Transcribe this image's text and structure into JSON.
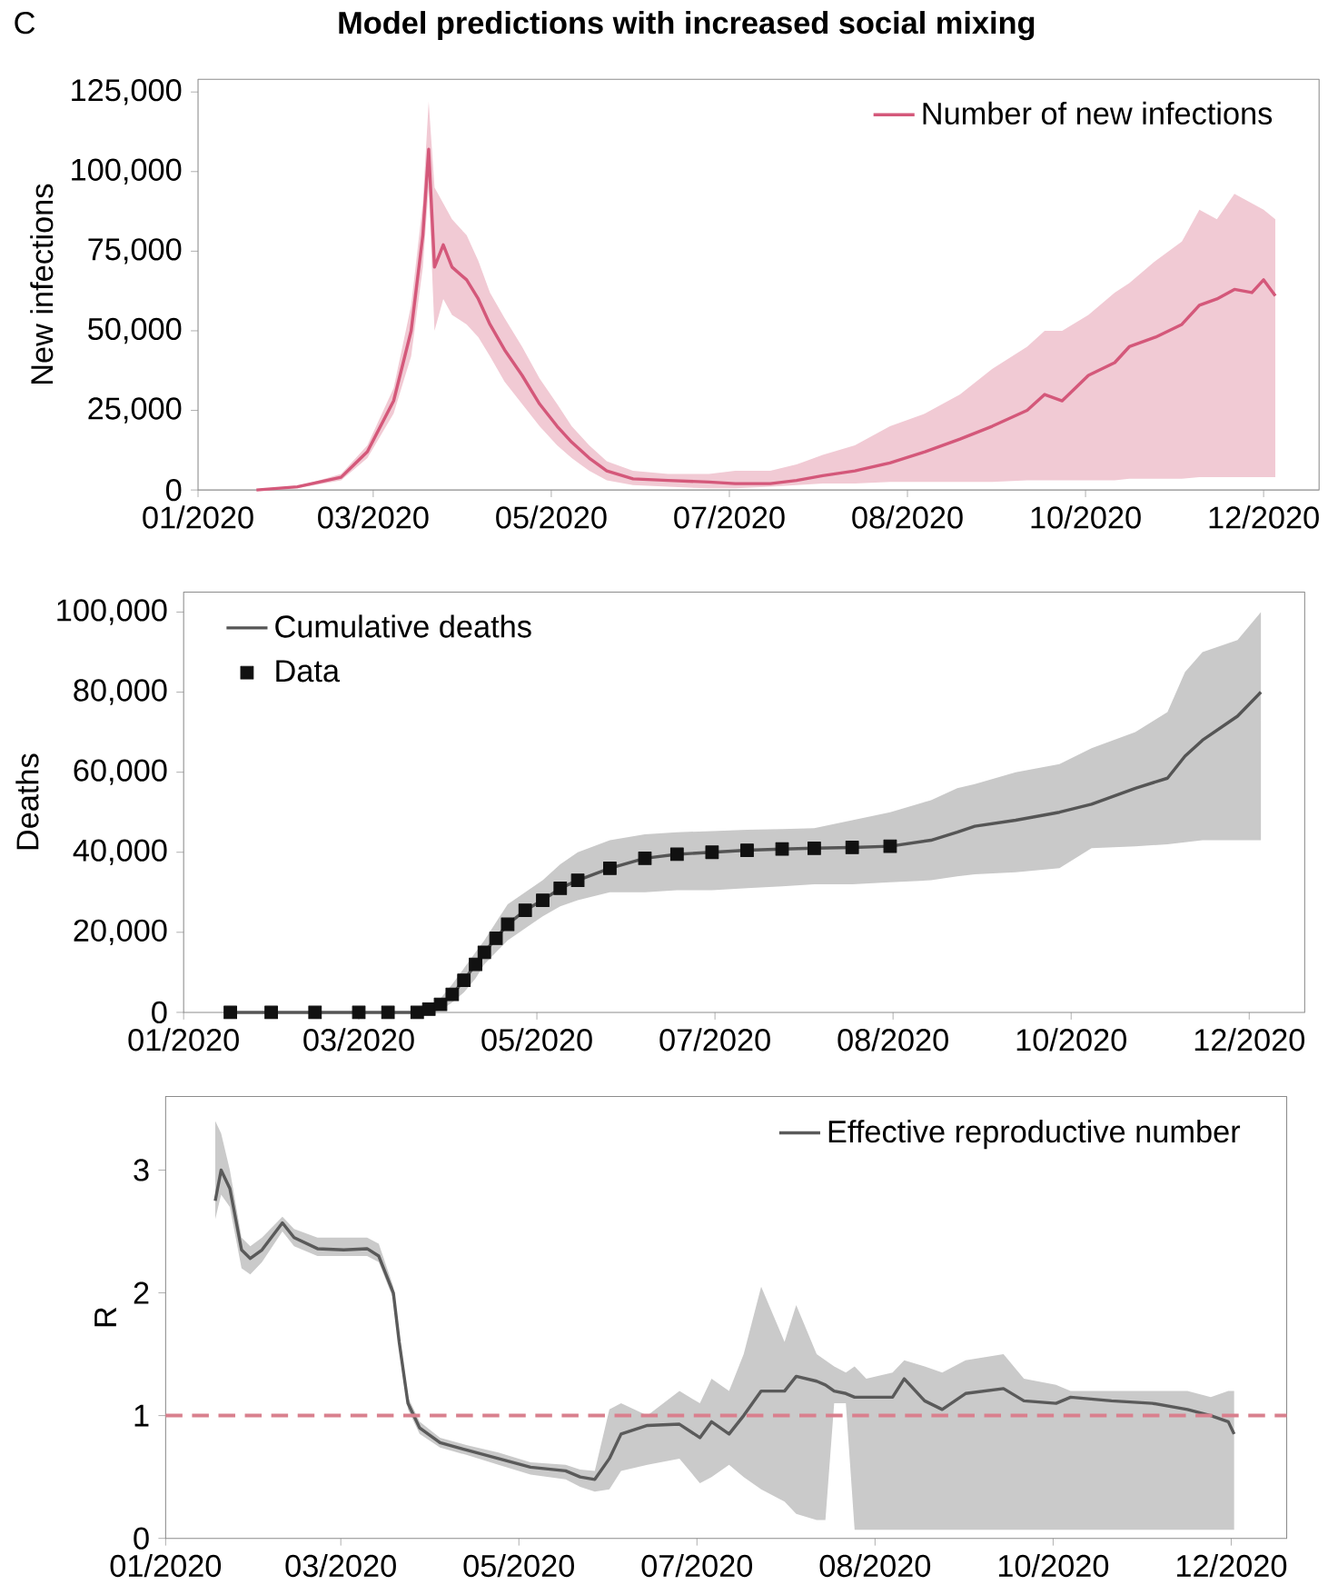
{
  "chart_data": [
    {
      "type": "line",
      "title": "Model predictions with increased social mixing",
      "annotations": [
        "C"
      ],
      "ylabel": "New infections",
      "legend": "top right",
      "xlim": [
        "2020-01-01",
        "2021-01-19"
      ],
      "xticks": [
        {
          "value": "2020-01-01",
          "label": "01/2020"
        },
        {
          "value": "2020-03-01",
          "label": "03/2020"
        },
        {
          "value": "2020-05-01",
          "label": "05/2020"
        },
        {
          "value": "2020-07-01",
          "label": "07/2020"
        },
        {
          "value": "2020-08-31",
          "label": "08/2020"
        },
        {
          "value": "2020-10-31",
          "label": "10/2020"
        },
        {
          "value": "2020-12-31",
          "label": "12/2020"
        }
      ],
      "ylim": [
        0,
        129000
      ],
      "yticks": [
        0,
        {
          "value": 25000,
          "label": "25,000"
        },
        {
          "value": 50000,
          "label": "50,000"
        },
        {
          "value": 75000,
          "label": "75,000"
        },
        {
          "value": 100000,
          "label": "100,000"
        },
        {
          "value": 125000,
          "label": "125,000"
        }
      ],
      "series": [
        {
          "name": "Number of new infections",
          "color": "#d4587a",
          "x": [
            "2020-01-21",
            "2020-02-04",
            "2020-02-19",
            "2020-02-28",
            "2020-03-08",
            "2020-03-14",
            "2020-03-18",
            "2020-03-20",
            "2020-03-22",
            "2020-03-25",
            "2020-03-28",
            "2020-04-02",
            "2020-04-06",
            "2020-04-10",
            "2020-04-15",
            "2020-04-21",
            "2020-04-27",
            "2020-05-03",
            "2020-05-08",
            "2020-05-14",
            "2020-05-20",
            "2020-05-29",
            "2020-06-10",
            "2020-06-24",
            "2020-07-03",
            "2020-07-15",
            "2020-07-24",
            "2020-08-02",
            "2020-08-13",
            "2020-08-25",
            "2020-09-06",
            "2020-09-18",
            "2020-09-29",
            "2020-10-11",
            "2020-10-17",
            "2020-10-23",
            "2020-11-01",
            "2020-11-10",
            "2020-11-15",
            "2020-11-24",
            "2020-12-03",
            "2020-12-09",
            "2020-12-15",
            "2020-12-21",
            "2020-12-27",
            "2020-12-31",
            "2021-01-04"
          ],
          "values": [
            0,
            1000,
            4000,
            12000,
            28000,
            50000,
            80000,
            107000,
            70000,
            77000,
            70000,
            66000,
            60000,
            52000,
            44000,
            36000,
            27000,
            20000,
            15000,
            10000,
            6000,
            3500,
            3000,
            2500,
            2000,
            2000,
            3000,
            4500,
            6000,
            8500,
            12000,
            16000,
            20000,
            25000,
            30000,
            28000,
            36000,
            40000,
            45000,
            48000,
            52000,
            58000,
            60000,
            63000,
            62000,
            66000,
            61000
          ],
          "lower": [
            0,
            500,
            3000,
            10000,
            24000,
            42000,
            70000,
            95000,
            50000,
            60000,
            55000,
            52000,
            48000,
            42000,
            34000,
            27000,
            20000,
            14000,
            10000,
            6000,
            3000,
            1500,
            1000,
            500,
            500,
            1000,
            1500,
            2000,
            2000,
            2500,
            2500,
            2500,
            2500,
            3000,
            3000,
            3000,
            3000,
            3000,
            3500,
            3500,
            3500,
            4000,
            4000,
            4000,
            4000,
            4000,
            4000
          ],
          "upper": [
            0,
            1000,
            5000,
            14000,
            32000,
            58000,
            90000,
            122000,
            95000,
            90000,
            85000,
            80000,
            72000,
            62000,
            54000,
            45000,
            35000,
            27000,
            20000,
            14000,
            9000,
            6000,
            5000,
            5000,
            6000,
            6000,
            8000,
            11000,
            14000,
            20000,
            24000,
            30000,
            38000,
            45000,
            50000,
            50000,
            55000,
            62000,
            65000,
            72000,
            78000,
            88000,
            85000,
            93000,
            90000,
            88000,
            85000
          ]
        }
      ]
    },
    {
      "type": "line",
      "ylabel": "Deaths",
      "legend": "top left",
      "xlim": [
        "2020-01-01",
        "2021-01-19"
      ],
      "xticks": [
        {
          "value": "2020-01-01",
          "label": "01/2020"
        },
        {
          "value": "2020-03-01",
          "label": "03/2020"
        },
        {
          "value": "2020-05-01",
          "label": "05/2020"
        },
        {
          "value": "2020-07-01",
          "label": "07/2020"
        },
        {
          "value": "2020-08-31",
          "label": "08/2020"
        },
        {
          "value": "2020-10-31",
          "label": "10/2020"
        },
        {
          "value": "2020-12-31",
          "label": "12/2020"
        }
      ],
      "ylim": [
        0,
        105000
      ],
      "yticks": [
        0,
        {
          "value": 20000,
          "label": "20,000"
        },
        {
          "value": 40000,
          "label": "40,000"
        },
        {
          "value": 60000,
          "label": "60,000"
        },
        {
          "value": 80000,
          "label": "80,000"
        },
        {
          "value": 100000,
          "label": "100,000"
        }
      ],
      "series": [
        {
          "name": "Cumulative deaths",
          "color": "#555555",
          "x": [
            "2020-01-17",
            "2020-01-31",
            "2020-02-15",
            "2020-03-01",
            "2020-03-11",
            "2020-03-21",
            "2020-03-25",
            "2020-03-29",
            "2020-04-02",
            "2020-04-06",
            "2020-04-10",
            "2020-04-13",
            "2020-04-17",
            "2020-04-21",
            "2020-04-27",
            "2020-05-03",
            "2020-05-09",
            "2020-05-15",
            "2020-05-26",
            "2020-06-07",
            "2020-06-18",
            "2020-06-30",
            "2020-07-12",
            "2020-07-24",
            "2020-08-04",
            "2020-08-17",
            "2020-08-30",
            "2020-09-13",
            "2020-09-22",
            "2020-09-28",
            "2020-10-12",
            "2020-10-27",
            "2020-11-07",
            "2020-11-22",
            "2020-12-03",
            "2020-12-09",
            "2020-12-15",
            "2020-12-27",
            "2021-01-04"
          ],
          "values": [
            0,
            0,
            0,
            0,
            0,
            0,
            800,
            2000,
            4500,
            8000,
            12000,
            15000,
            18500,
            22000,
            25500,
            28000,
            31000,
            33000,
            36000,
            38500,
            39500,
            40000,
            40500,
            40800,
            41000,
            41200,
            41500,
            43000,
            45000,
            46500,
            48000,
            50000,
            52000,
            56000,
            58500,
            64000,
            68000,
            74000,
            80000
          ],
          "lower": [
            0,
            0,
            0,
            0,
            0,
            0,
            0,
            500,
            2500,
            5000,
            8500,
            12000,
            15000,
            18000,
            21000,
            24000,
            26500,
            28000,
            30000,
            30000,
            30500,
            30500,
            31000,
            31500,
            32000,
            32000,
            32500,
            33000,
            34000,
            34500,
            35000,
            36000,
            41000,
            41500,
            42000,
            42500,
            43000,
            43000,
            43000
          ],
          "upper": [
            0,
            0,
            0,
            0,
            0,
            0,
            1500,
            3500,
            7000,
            11000,
            15000,
            18000,
            22500,
            27000,
            30000,
            33000,
            37000,
            40000,
            43000,
            44500,
            45000,
            45300,
            45600,
            45800,
            46000,
            48000,
            50000,
            53000,
            56000,
            57000,
            60000,
            62000,
            66000,
            70000,
            75000,
            85000,
            90000,
            93000,
            100000
          ]
        },
        {
          "name": "Data",
          "type": "scatter",
          "color": "#111111",
          "marker": "square",
          "x": [
            "2020-01-17",
            "2020-01-31",
            "2020-02-15",
            "2020-03-01",
            "2020-03-11",
            "2020-03-21",
            "2020-03-25",
            "2020-03-29",
            "2020-04-02",
            "2020-04-06",
            "2020-04-10",
            "2020-04-13",
            "2020-04-17",
            "2020-04-21",
            "2020-04-27",
            "2020-05-03",
            "2020-05-09",
            "2020-05-15",
            "2020-05-26",
            "2020-06-07",
            "2020-06-18",
            "2020-06-30",
            "2020-07-12",
            "2020-07-24",
            "2020-08-04",
            "2020-08-17",
            "2020-08-30"
          ],
          "values": [
            0,
            0,
            0,
            0,
            0,
            0,
            800,
            2000,
            4500,
            8000,
            12000,
            15000,
            18500,
            22000,
            25500,
            28000,
            31000,
            33000,
            36000,
            38500,
            39500,
            40000,
            40500,
            40800,
            41000,
            41200,
            41500
          ]
        }
      ]
    },
    {
      "type": "line",
      "ylabel": "R",
      "legend": "top right",
      "xlim": [
        "2020-01-01",
        "2021-01-19"
      ],
      "xticks": [
        {
          "value": "2020-01-01",
          "label": "01/2020"
        },
        {
          "value": "2020-03-01",
          "label": "03/2020"
        },
        {
          "value": "2020-05-01",
          "label": "05/2020"
        },
        {
          "value": "2020-07-01",
          "label": "07/2020"
        },
        {
          "value": "2020-08-31",
          "label": "08/2020"
        },
        {
          "value": "2020-10-31",
          "label": "10/2020"
        },
        {
          "value": "2020-12-31",
          "label": "12/2020"
        }
      ],
      "ylim": [
        0,
        3.6
      ],
      "yticks": [
        0,
        1,
        2,
        3
      ],
      "ref_lines": [
        {
          "axis": "y",
          "value": 1,
          "color": "#d9808e",
          "line_style": "dashed"
        }
      ],
      "series": [
        {
          "name": "Effective reproductive number",
          "color": "#5a5a5a",
          "x": [
            "2020-01-18",
            "2020-01-20",
            "2020-01-23",
            "2020-01-27",
            "2020-01-30",
            "2020-02-03",
            "2020-02-10",
            "2020-02-14",
            "2020-02-22",
            "2020-03-02",
            "2020-03-10",
            "2020-03-14",
            "2020-03-19",
            "2020-03-21",
            "2020-03-24",
            "2020-03-28",
            "2020-04-04",
            "2020-04-13",
            "2020-04-24",
            "2020-05-05",
            "2020-05-17",
            "2020-05-22",
            "2020-05-27",
            "2020-06-01",
            "2020-06-05",
            "2020-06-14",
            "2020-06-25",
            "2020-07-02",
            "2020-07-06",
            "2020-07-12",
            "2020-07-17",
            "2020-07-23",
            "2020-07-31",
            "2020-08-04",
            "2020-08-11",
            "2020-08-14",
            "2020-08-17",
            "2020-08-21",
            "2020-08-24",
            "2020-08-28",
            "2020-09-06",
            "2020-09-10",
            "2020-09-17",
            "2020-09-23",
            "2020-10-01",
            "2020-10-14",
            "2020-10-21",
            "2020-11-01",
            "2020-11-06",
            "2020-11-20",
            "2020-12-04",
            "2020-12-16",
            "2020-12-24",
            "2020-12-30",
            "2021-01-01"
          ],
          "values": [
            2.75,
            3.0,
            2.85,
            2.35,
            2.28,
            2.35,
            2.57,
            2.45,
            2.36,
            2.35,
            2.36,
            2.3,
            2.0,
            1.6,
            1.1,
            0.9,
            0.78,
            0.72,
            0.65,
            0.58,
            0.55,
            0.5,
            0.48,
            0.65,
            0.85,
            0.92,
            0.93,
            0.82,
            0.95,
            0.85,
            1.0,
            1.2,
            1.2,
            1.32,
            1.28,
            1.25,
            1.2,
            1.18,
            1.15,
            1.15,
            1.15,
            1.3,
            1.12,
            1.05,
            1.18,
            1.22,
            1.12,
            1.1,
            1.15,
            1.12,
            1.1,
            1.05,
            1.0,
            0.95,
            0.85
          ],
          "lower": [
            2.6,
            2.8,
            2.7,
            2.2,
            2.15,
            2.25,
            2.5,
            2.38,
            2.3,
            2.3,
            2.3,
            2.25,
            1.95,
            1.55,
            1.05,
            0.85,
            0.74,
            0.68,
            0.6,
            0.52,
            0.48,
            0.42,
            0.38,
            0.4,
            0.55,
            0.6,
            0.65,
            0.45,
            0.5,
            0.6,
            0.5,
            0.4,
            0.3,
            0.2,
            0.15,
            0.15,
            1.1,
            1.1,
            0.07,
            0.07,
            0.07,
            0.07,
            0.07,
            0.07,
            0.07,
            0.07,
            0.07,
            0.07,
            0.07,
            0.07,
            0.07,
            0.07,
            0.07,
            0.07,
            0.07
          ],
          "upper": [
            3.4,
            3.3,
            3.0,
            2.45,
            2.38,
            2.45,
            2.62,
            2.52,
            2.45,
            2.45,
            2.45,
            2.4,
            2.05,
            1.65,
            1.15,
            0.95,
            0.82,
            0.76,
            0.7,
            0.62,
            0.6,
            0.56,
            0.55,
            1.05,
            1.1,
            1.0,
            1.2,
            1.1,
            1.3,
            1.2,
            1.5,
            2.05,
            1.6,
            1.9,
            1.5,
            1.45,
            1.4,
            1.35,
            1.4,
            1.3,
            1.35,
            1.45,
            1.4,
            1.35,
            1.45,
            1.5,
            1.3,
            1.25,
            1.2,
            1.2,
            1.2,
            1.2,
            1.15,
            1.2,
            1.2
          ]
        }
      ]
    }
  ]
}
